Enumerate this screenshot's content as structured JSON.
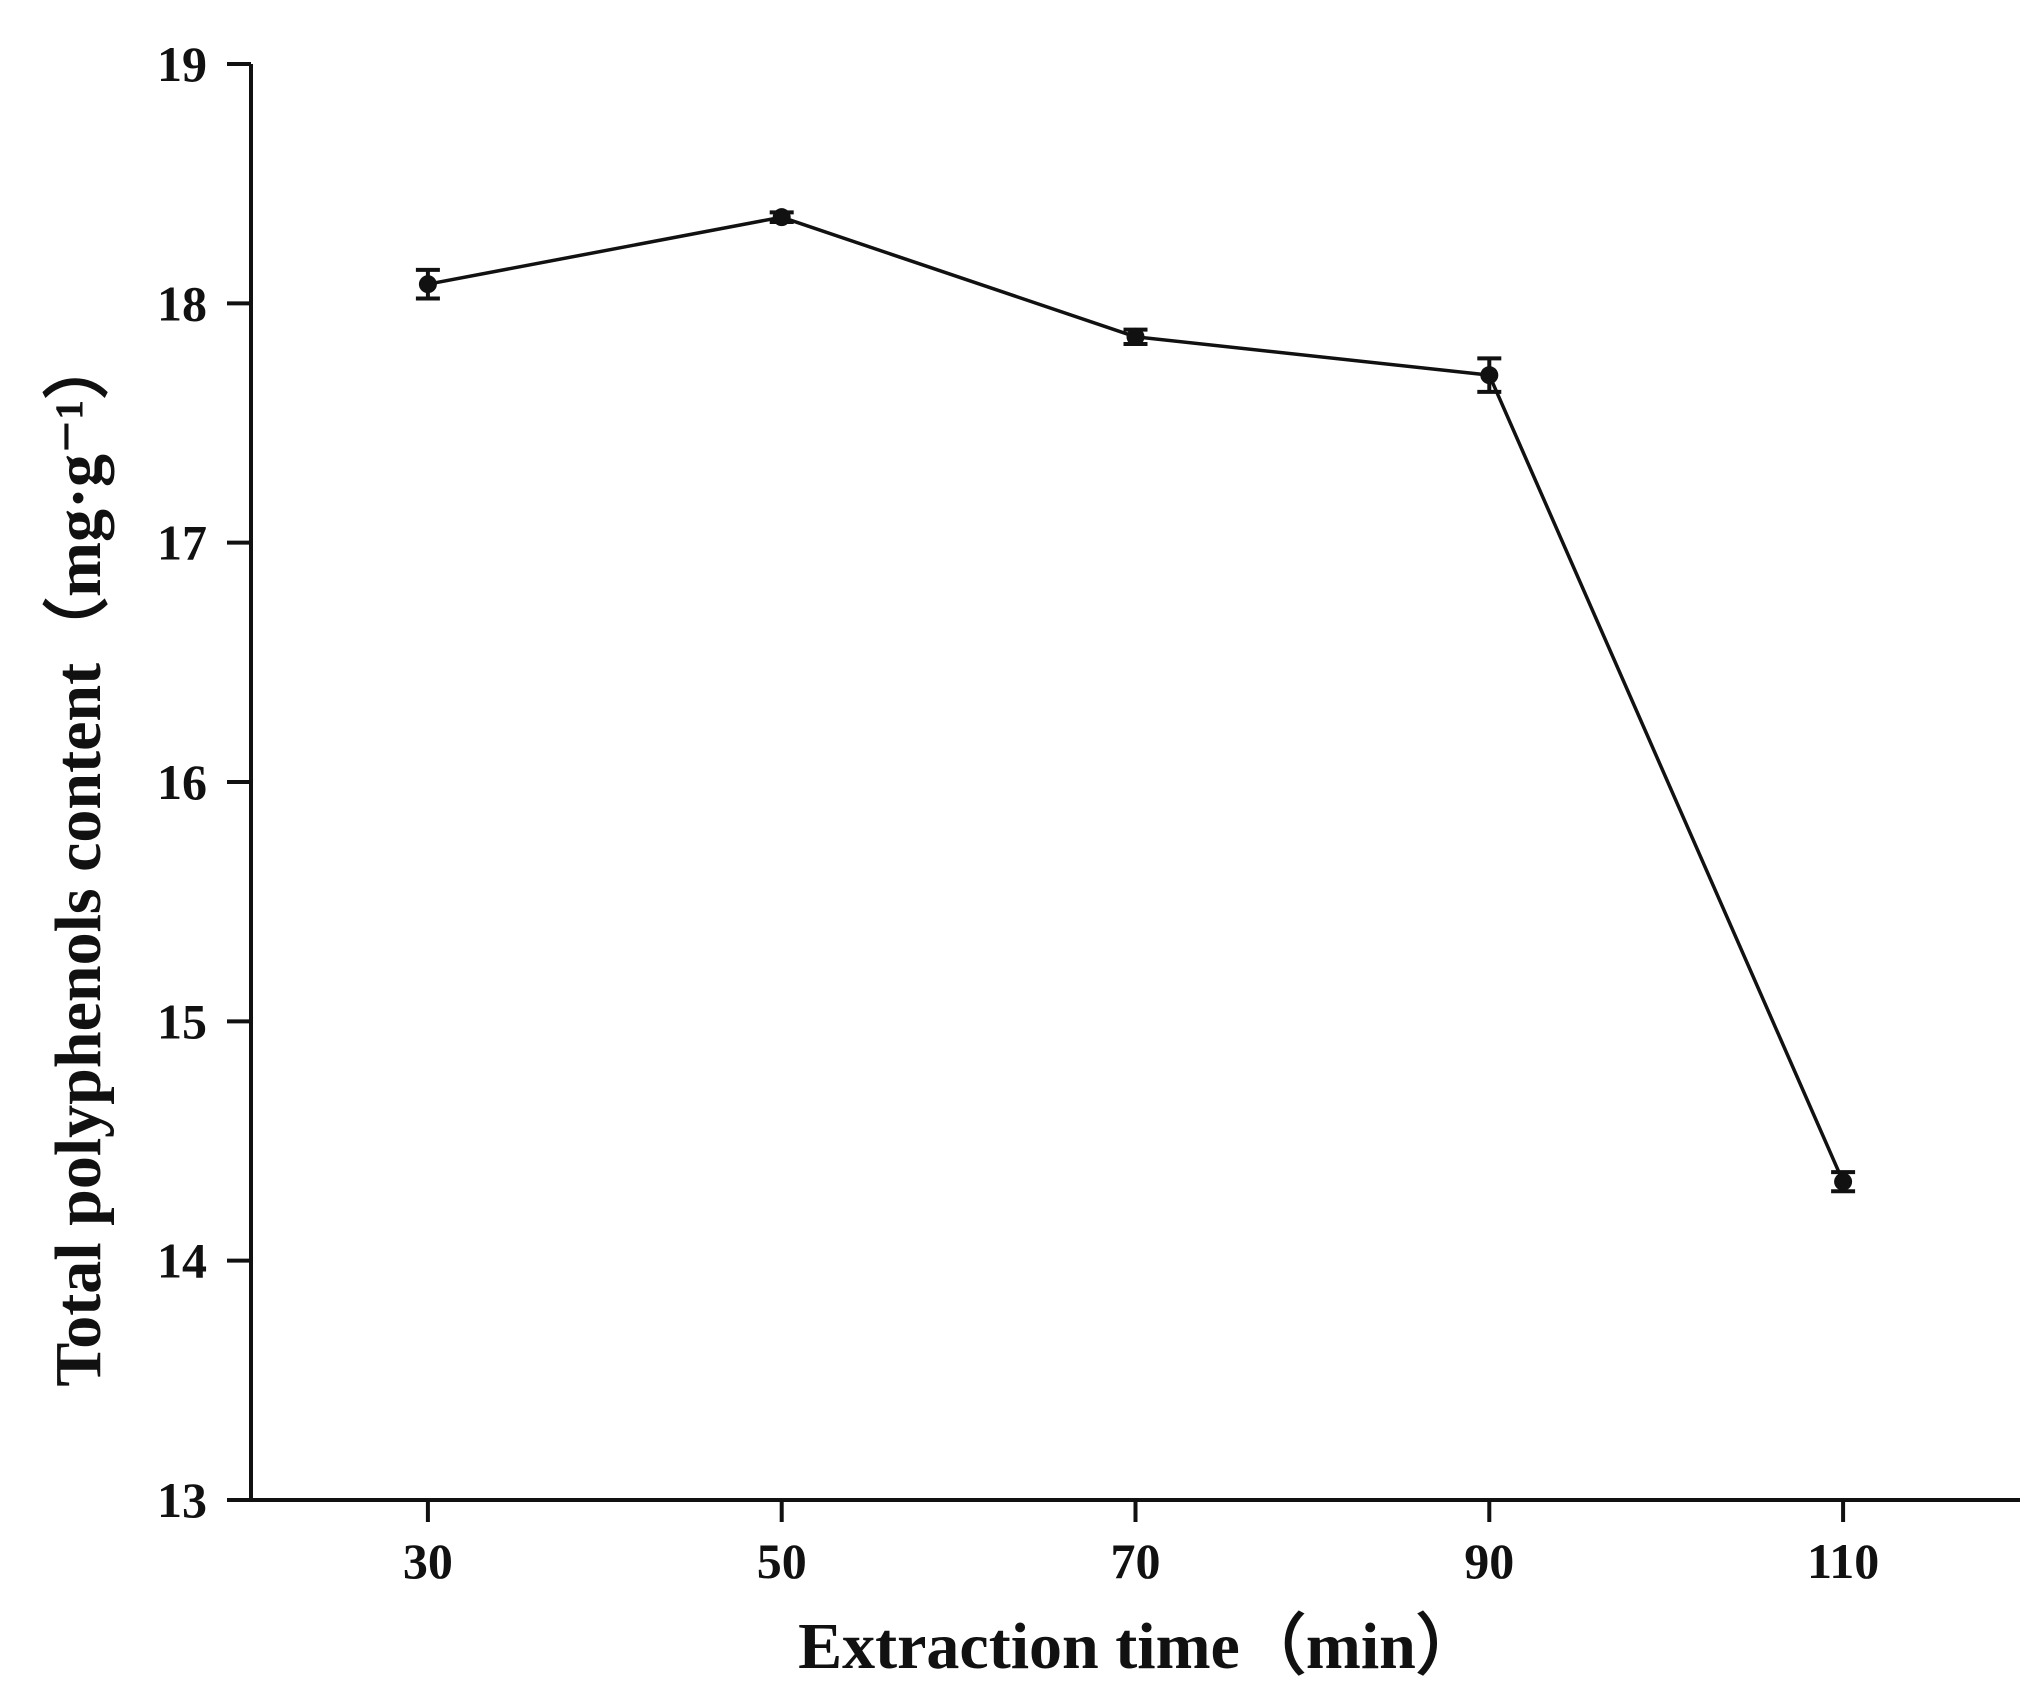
{
  "chart_data": {
    "type": "line",
    "title": "",
    "xlabel": "Extraction time（min）",
    "ylabel": "Total polyphenols content（mg·g⁻¹）",
    "x": [
      30,
      50,
      70,
      90,
      110
    ],
    "xlim": [
      20,
      120
    ],
    "ylim": [
      13,
      19
    ],
    "x_ticks": [
      30,
      50,
      70,
      90,
      110
    ],
    "y_ticks": [
      13,
      14,
      15,
      16,
      17,
      18,
      19
    ],
    "grid": false,
    "legend": "none",
    "series": [
      {
        "name": "Total polyphenols content",
        "values": [
          18.08,
          18.36,
          17.86,
          17.7,
          14.33
        ],
        "error": [
          0.06,
          0.02,
          0.03,
          0.07,
          0.04
        ],
        "color": "#111111",
        "marker": "circle"
      }
    ]
  }
}
